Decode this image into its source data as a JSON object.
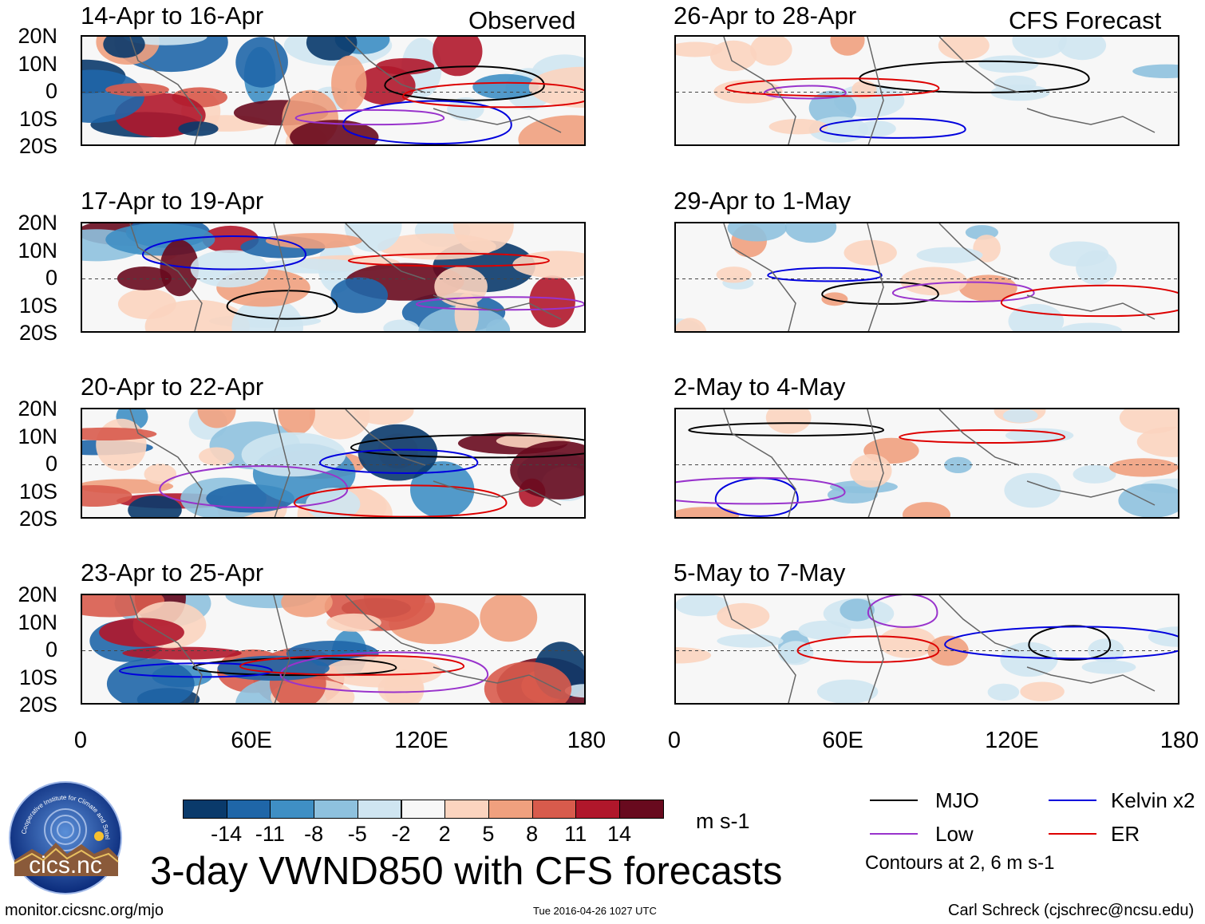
{
  "chart_data": {
    "type": "heatmap",
    "title": "3-day VWND850 with CFS forecasts",
    "variable": "VWND850",
    "units": "m s-1",
    "columns": [
      "Observed",
      "CFS Forecast"
    ],
    "x_ticks": [
      "0",
      "60E",
      "120E",
      "180"
    ],
    "x_range": [
      0,
      180
    ],
    "y_ticks": [
      "20N",
      "10N",
      "0",
      "10S",
      "20S"
    ],
    "y_range": [
      -20,
      20
    ],
    "panels": [
      {
        "column": "Observed",
        "period": "14-Apr to 16-Apr"
      },
      {
        "column": "Observed",
        "period": "17-Apr to 19-Apr"
      },
      {
        "column": "Observed",
        "period": "20-Apr to 22-Apr"
      },
      {
        "column": "Observed",
        "period": "23-Apr to 25-Apr"
      },
      {
        "column": "CFS Forecast",
        "period": "26-Apr to 28-Apr"
      },
      {
        "column": "CFS Forecast",
        "period": "29-Apr to 1-May"
      },
      {
        "column": "CFS Forecast",
        "period": "2-May to 4-May"
      },
      {
        "column": "CFS Forecast",
        "period": "5-May to 7-May"
      }
    ],
    "colorbar": {
      "labels": [
        "-14",
        "-11",
        "-8",
        "-5",
        "-2",
        "2",
        "5",
        "8",
        "11",
        "14"
      ],
      "colors": [
        "#0a3a6b",
        "#1f66a8",
        "#3f8fc4",
        "#8ec1de",
        "#cfe5f1",
        "#f7f7f7",
        "#fbd4bf",
        "#f0a07e",
        "#d85b4c",
        "#b0172b",
        "#680a1e"
      ],
      "units": "m s-1"
    },
    "contour_legend": [
      {
        "label": "MJO",
        "color": "#000000"
      },
      {
        "label": "Kelvin x2",
        "color": "#0000dd"
      },
      {
        "label": "Low",
        "color": "#9933cc"
      },
      {
        "label": "ER",
        "color": "#dd0000"
      }
    ],
    "contour_note": "Contours at 2, 6 m s-1"
  },
  "logo_text": "cics.nc",
  "logo_ring_text": "Cooperative Institute for Climate and Satellites",
  "footer": {
    "left": "monitor.cicsnc.org/mjo",
    "center": "Tue 2016-04-26 1027 UTC",
    "right": "Carl Schreck (cjschrec@ncsu.edu)"
  }
}
